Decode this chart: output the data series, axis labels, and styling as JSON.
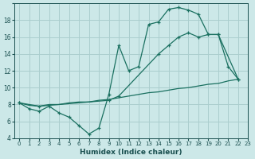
{
  "xlabel": "Humidex (Indice chaleur)",
  "background_color": "#cce8e8",
  "grid_color": "#aacece",
  "line_color": "#1a7060",
  "xlim": [
    -0.5,
    23
  ],
  "ylim": [
    4,
    20
  ],
  "ytick_labels": [
    "4",
    "6",
    "8",
    "10",
    "12",
    "14",
    "16",
    "18",
    ""
  ],
  "ytick_vals": [
    4,
    6,
    8,
    10,
    12,
    14,
    16,
    18,
    20
  ],
  "line1_x": [
    0,
    1,
    2,
    3,
    4,
    5,
    6,
    7,
    8,
    9,
    10,
    11,
    12,
    13,
    14,
    15,
    16,
    17,
    18,
    19,
    20,
    21,
    22
  ],
  "line1_y": [
    8.2,
    7.5,
    7.2,
    7.8,
    7.0,
    6.5,
    5.5,
    4.5,
    5.2,
    9.2,
    15.0,
    12.0,
    12.5,
    17.5,
    17.8,
    19.3,
    19.5,
    19.2,
    18.7,
    16.3,
    16.3,
    12.5,
    11.0
  ],
  "line2_x": [
    0,
    1,
    2,
    3,
    4,
    5,
    6,
    7,
    8,
    9,
    10,
    11,
    12,
    13,
    14,
    15,
    16,
    17,
    18,
    19,
    20,
    21,
    22
  ],
  "line2_y": [
    8.2,
    7.9,
    7.8,
    8.0,
    8.0,
    8.2,
    8.3,
    8.3,
    8.5,
    8.6,
    8.8,
    9.0,
    9.2,
    9.4,
    9.5,
    9.7,
    9.9,
    10.0,
    10.2,
    10.4,
    10.5,
    10.8,
    11.0
  ],
  "line3_x": [
    0,
    2,
    9,
    10,
    14,
    15,
    16,
    17,
    18,
    19,
    20,
    22
  ],
  "line3_y": [
    8.2,
    7.8,
    8.5,
    9.0,
    14.0,
    15.0,
    16.0,
    16.5,
    16.0,
    16.3,
    16.3,
    11.0
  ]
}
